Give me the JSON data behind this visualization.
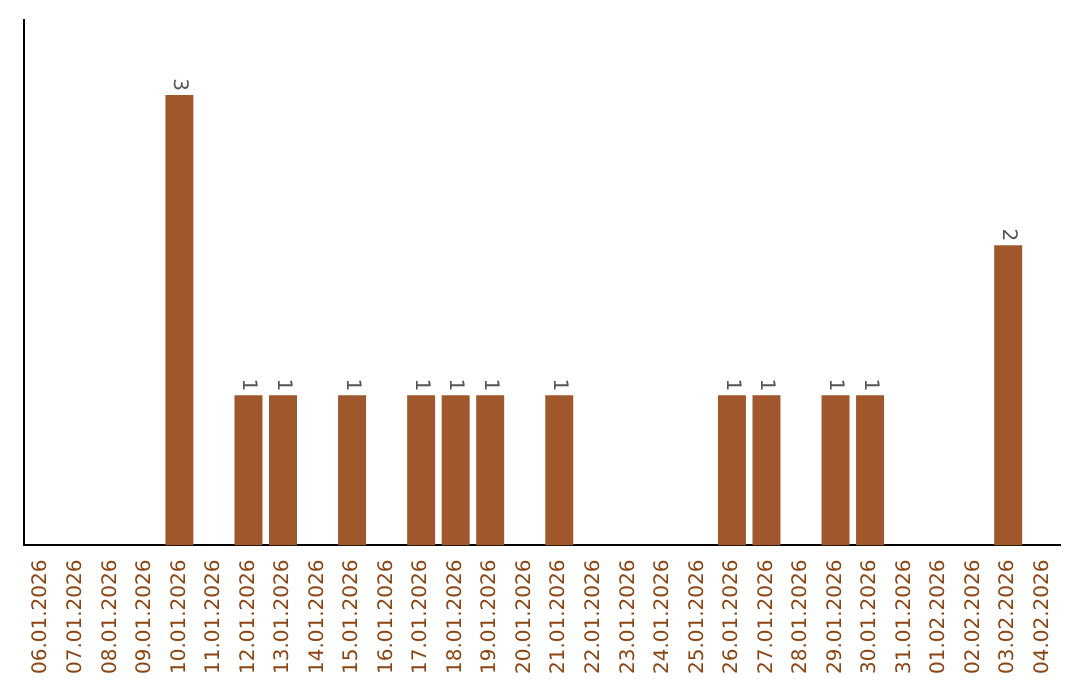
{
  "chart_data": {
    "type": "bar",
    "categories": [
      "06.01.2026",
      "07.01.2026",
      "08.01.2026",
      "09.01.2026",
      "10.01.2026",
      "11.01.2026",
      "12.01.2026",
      "13.01.2026",
      "14.01.2026",
      "15.01.2026",
      "16.01.2026",
      "17.01.2026",
      "18.01.2026",
      "19.01.2026",
      "20.01.2026",
      "21.01.2026",
      "22.01.2026",
      "23.01.2026",
      "24.01.2026",
      "25.01.2026",
      "26.01.2026",
      "27.01.2026",
      "28.01.2026",
      "29.01.2026",
      "30.01.2026",
      "31.01.2026",
      "01.02.2026",
      "02.02.2026",
      "03.02.2026",
      "04.02.2026"
    ],
    "values": [
      0,
      0,
      0,
      0,
      3,
      0,
      1,
      1,
      0,
      1,
      0,
      1,
      1,
      1,
      0,
      1,
      0,
      0,
      0,
      0,
      1,
      1,
      0,
      1,
      1,
      0,
      0,
      0,
      2,
      0
    ],
    "value_labels": [
      null,
      null,
      null,
      null,
      "3",
      null,
      "1",
      "1",
      null,
      "1",
      null,
      "1",
      "1",
      "1",
      null,
      "1",
      null,
      null,
      null,
      null,
      "1",
      "1",
      null,
      "1",
      "1",
      null,
      null,
      null,
      "2",
      null
    ],
    "color": "#a0572b",
    "grid": false,
    "legend": false
  }
}
